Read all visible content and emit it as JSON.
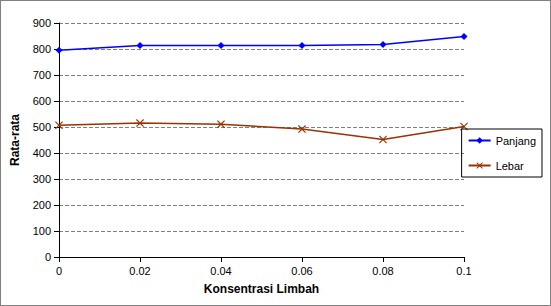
{
  "chart_data": {
    "type": "line",
    "x_label": "Konsentrasi Limbah",
    "y_label": "Rata-rata",
    "x": [
      0,
      0.02,
      0.04,
      0.06,
      0.08,
      0.1
    ],
    "series": [
      {
        "name": "Panjang",
        "color": "#0000ff",
        "marker": "diamond",
        "values": [
          795,
          813,
          813,
          813,
          817,
          848
        ]
      },
      {
        "name": "Lebar",
        "color": "#993300",
        "marker": "x",
        "values": [
          507,
          515,
          511,
          492,
          452,
          502
        ]
      }
    ],
    "xlim": [
      0,
      0.1
    ],
    "xticks": [
      0,
      0.02,
      0.04,
      0.06,
      0.08,
      0.1
    ],
    "ylim": [
      0,
      900
    ],
    "yticks": [
      0,
      100,
      200,
      300,
      400,
      500,
      600,
      700,
      800,
      900
    ],
    "grid": true,
    "legend": "right"
  }
}
